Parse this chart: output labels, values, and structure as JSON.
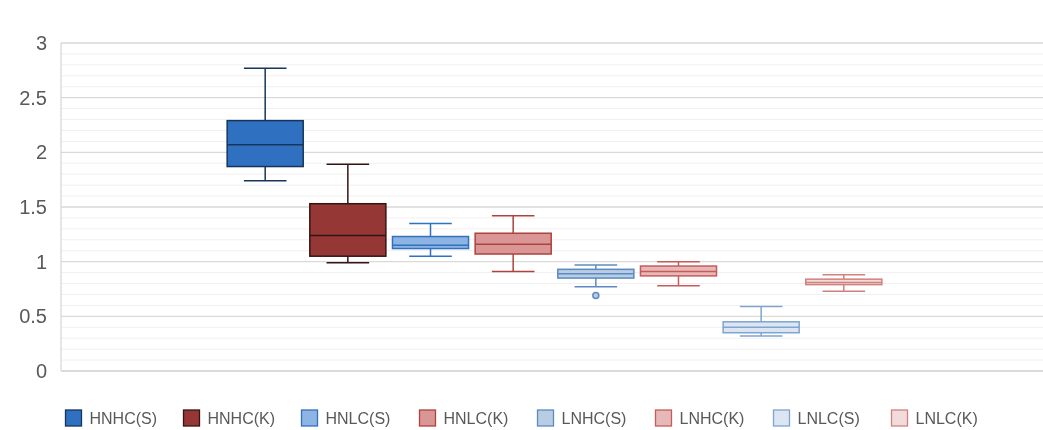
{
  "chart_data": {
    "type": "box",
    "categories": [
      null
    ],
    "ylim": [
      0,
      3
    ],
    "yticks": [
      0,
      {
        "value": 0.1,
        "label": null
      },
      {
        "value": 0.2,
        "label": null
      },
      {
        "value": 0.3,
        "label": null
      },
      {
        "value": 0.4,
        "label": null
      },
      0.5,
      {
        "value": 0.6,
        "label": null
      },
      {
        "value": 0.7,
        "label": null
      },
      {
        "value": 0.8,
        "label": null
      },
      {
        "value": 0.9,
        "label": null
      },
      1,
      {
        "value": 1.1,
        "label": null
      },
      {
        "value": 1.2,
        "label": null
      },
      {
        "value": 1.3,
        "label": null
      },
      {
        "value": 1.4,
        "label": null
      },
      1.5,
      {
        "value": 1.6,
        "label": null
      },
      {
        "value": 1.7,
        "label": null
      },
      {
        "value": 1.8,
        "label": null
      },
      {
        "value": 1.9,
        "label": null
      },
      2,
      {
        "value": 2.1,
        "label": null
      },
      {
        "value": 2.2,
        "label": null
      },
      {
        "value": 2.3,
        "label": null
      },
      {
        "value": 2.4,
        "label": null
      },
      2.5,
      {
        "value": 2.6,
        "label": null
      },
      {
        "value": 2.7,
        "label": null
      },
      {
        "value": 2.8,
        "label": null
      },
      {
        "value": 2.9,
        "label": null
      },
      3
    ],
    "grid": "y",
    "legend": "bottom",
    "series": [
      {
        "name": "HNHC(S)",
        "color": "#3070c0",
        "boxes": [
          {
            "low": 1.74,
            "q1": 1.87,
            "median": 2.07,
            "q3": 2.29,
            "high": 2.77
          }
        ]
      },
      {
        "name": "HNHC(K)",
        "color": "#953735",
        "boxes": [
          {
            "low": 0.99,
            "q1": 1.05,
            "median": 1.24,
            "q3": 1.53,
            "high": 1.89
          }
        ]
      },
      {
        "name": "HNLC(S)",
        "color": "#8db4e2",
        "boxes": [
          {
            "low": 1.05,
            "q1": 1.12,
            "median": 1.15,
            "q3": 1.23,
            "high": 1.35
          }
        ]
      },
      {
        "name": "HNLC(K)",
        "color": "#d99694",
        "boxes": [
          {
            "low": 0.91,
            "q1": 1.07,
            "median": 1.16,
            "q3": 1.26,
            "high": 1.42
          }
        ]
      },
      {
        "name": "LNHC(S)",
        "color": "#b8cce4",
        "boxes": [
          {
            "low": 0.77,
            "q1": 0.85,
            "median": 0.89,
            "q3": 0.93,
            "high": 0.97,
            "outliers": [
              0.69
            ]
          }
        ]
      },
      {
        "name": "LNHC(K)",
        "color": "#e6b9b8",
        "boxes": [
          {
            "low": 0.78,
            "q1": 0.87,
            "median": 0.91,
            "q3": 0.96,
            "high": 1.0
          }
        ]
      },
      {
        "name": "LNLC(S)",
        "color": "#dce6f2",
        "boxes": [
          {
            "low": 0.32,
            "q1": 0.35,
            "median": 0.4,
            "q3": 0.45,
            "high": 0.59
          }
        ]
      },
      {
        "name": "LNLC(K)",
        "color": "#f2dcdb",
        "boxes": [
          {
            "low": 0.73,
            "q1": 0.79,
            "median": 0.81,
            "q3": 0.84,
            "high": 0.88
          }
        ]
      }
    ]
  }
}
